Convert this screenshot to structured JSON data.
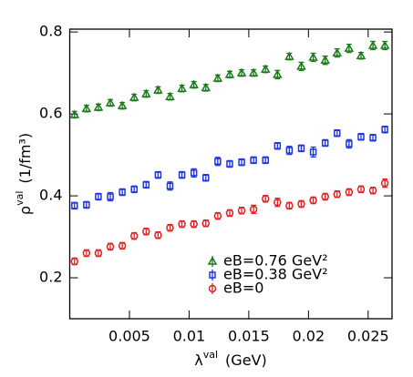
{
  "chart_data": {
    "type": "scatter",
    "xlabel": {
      "symbol": "λ",
      "sup": "val",
      "unit": "(GeV)"
    },
    "ylabel": {
      "symbol": "ρ",
      "sup": "val",
      "unit": "(1/fm³)"
    },
    "x": [
      0.0004,
      0.0014,
      0.0024,
      0.0034,
      0.0044,
      0.0054,
      0.0064,
      0.0074,
      0.0084,
      0.0094,
      0.0104,
      0.0114,
      0.0124,
      0.0134,
      0.0144,
      0.0154,
      0.0164,
      0.0174,
      0.0184,
      0.0194,
      0.0204,
      0.0214,
      0.0224,
      0.0234,
      0.0244,
      0.0254,
      0.0264
    ],
    "series": [
      {
        "name": "eB=0.76 GeV²",
        "color": "#1a7a1a",
        "marker": "triangle",
        "values": [
          0.598,
          0.613,
          0.616,
          0.627,
          0.62,
          0.64,
          0.649,
          0.658,
          0.642,
          0.662,
          0.671,
          0.664,
          0.687,
          0.696,
          0.7,
          0.7,
          0.709,
          0.696,
          0.74,
          0.716,
          0.738,
          0.731,
          0.749,
          0.76,
          0.742,
          0.767,
          0.767
        ],
        "errors": [
          0.008,
          0.008,
          0.008,
          0.008,
          0.008,
          0.008,
          0.008,
          0.008,
          0.008,
          0.008,
          0.008,
          0.008,
          0.008,
          0.008,
          0.008,
          0.008,
          0.008,
          0.01,
          0.008,
          0.01,
          0.01,
          0.01,
          0.01,
          0.01,
          0.008,
          0.01,
          0.01
        ]
      },
      {
        "name": "eB=0.38 GeV²",
        "color": "#1f35e0",
        "marker": "square",
        "values": [
          0.376,
          0.378,
          0.398,
          0.398,
          0.409,
          0.416,
          0.427,
          0.451,
          0.424,
          0.451,
          0.456,
          0.444,
          0.484,
          0.478,
          0.482,
          0.487,
          0.487,
          0.522,
          0.511,
          0.516,
          0.507,
          0.529,
          0.553,
          0.527,
          0.544,
          0.542,
          0.562
        ],
        "errors": [
          0.008,
          0.008,
          0.008,
          0.01,
          0.008,
          0.008,
          0.008,
          0.008,
          0.01,
          0.008,
          0.01,
          0.008,
          0.01,
          0.008,
          0.008,
          0.008,
          0.008,
          0.008,
          0.01,
          0.008,
          0.012,
          0.008,
          0.008,
          0.01,
          0.008,
          0.008,
          0.008
        ]
      },
      {
        "name": "eB=0",
        "color": "#e02020",
        "marker": "circle",
        "values": [
          0.24,
          0.26,
          0.26,
          0.276,
          0.278,
          0.302,
          0.313,
          0.304,
          0.322,
          0.331,
          0.331,
          0.333,
          0.351,
          0.358,
          0.364,
          0.367,
          0.393,
          0.384,
          0.376,
          0.38,
          0.389,
          0.398,
          0.404,
          0.409,
          0.416,
          0.413,
          0.431
        ],
        "errors": [
          0.008,
          0.008,
          0.008,
          0.008,
          0.008,
          0.008,
          0.008,
          0.008,
          0.008,
          0.008,
          0.008,
          0.008,
          0.008,
          0.008,
          0.008,
          0.01,
          0.008,
          0.01,
          0.008,
          0.008,
          0.008,
          0.008,
          0.008,
          0.008,
          0.008,
          0.008,
          0.01
        ]
      }
    ],
    "xlim": [
      0,
      0.027
    ],
    "ylim": [
      0.1,
      0.807
    ],
    "xticks": [
      0.005,
      0.01,
      0.015,
      0.02,
      0.025
    ],
    "yticks": [
      0.2,
      0.4,
      0.6,
      0.8
    ],
    "legend": "lower right"
  }
}
